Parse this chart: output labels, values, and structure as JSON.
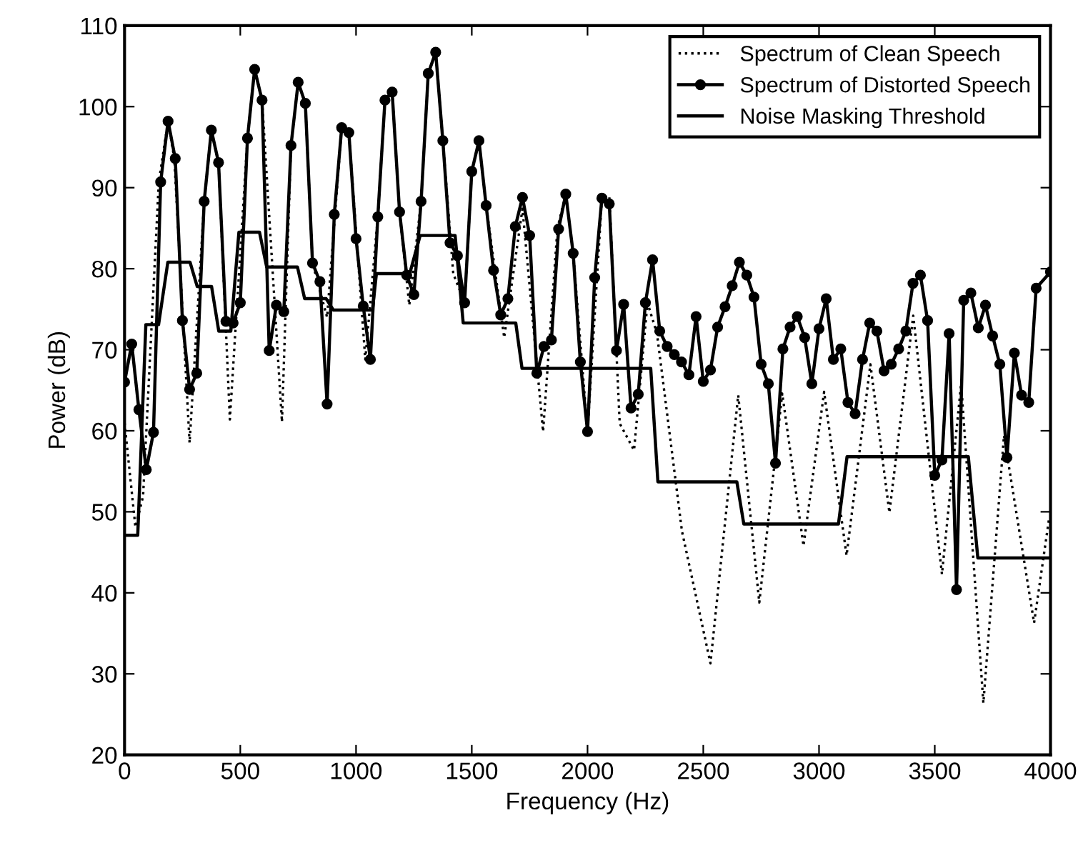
{
  "chart_data": {
    "type": "line",
    "xlabel": "Frequency (Hz)",
    "ylabel": "Power (dB)",
    "xlim": [
      0,
      4000
    ],
    "xticks": [
      0,
      500,
      1000,
      1500,
      2000,
      2500,
      3000,
      3500,
      4000
    ],
    "ylim": [
      20,
      110
    ],
    "yticks": [
      20,
      30,
      40,
      50,
      60,
      70,
      80,
      90,
      100,
      110
    ],
    "grid": false,
    "legend": "top right",
    "series": [
      {
        "name": "Spectrum of Clean Speech",
        "color": "#000000",
        "line_style": "dotted",
        "marker": "none",
        "x": [
          0,
          47,
          80,
          148,
          188,
          215,
          281,
          344,
          375,
          406,
          455,
          531,
          562,
          594,
          680,
          719,
          750,
          781,
          812,
          875,
          938,
          969,
          1040,
          1094,
          1125,
          1156,
          1188,
          1230,
          1281,
          1312,
          1344,
          1375,
          1420,
          1469,
          1500,
          1531,
          1562,
          1640,
          1719,
          1808,
          1870,
          1906,
          1938,
          2000,
          2062,
          2094,
          2139,
          2201,
          2259,
          2300,
          2408,
          2531,
          2651,
          2742,
          2841,
          2933,
          3022,
          3119,
          3222,
          3304,
          3407,
          3531,
          3614,
          3710,
          3799,
          3929,
          3995
        ],
        "values": [
          61,
          48.1,
          51.9,
          90.7,
          98.2,
          93.6,
          58.5,
          88.3,
          97.1,
          93.1,
          61.4,
          96.1,
          104.6,
          100.8,
          61.1,
          95.2,
          103.0,
          100.4,
          80.7,
          74,
          97.4,
          96.8,
          68.8,
          86.4,
          100.8,
          101.8,
          87.0,
          75.5,
          88.3,
          104.1,
          106.7,
          95.8,
          79.4,
          75.8,
          92,
          95.8,
          87.8,
          71.5,
          87.4,
          59.9,
          85,
          89.2,
          81.9,
          59.9,
          88.7,
          89,
          60.9,
          57.6,
          75.8,
          72,
          47.6,
          31.3,
          64.4,
          38.8,
          64.6,
          45.8,
          64.8,
          44.6,
          68.2,
          49.9,
          74.2,
          42.3,
          65.8,
          26.4,
          59.4,
          36.3,
          49.4
        ]
      },
      {
        "name": "Spectrum of Distorted Speech",
        "color": "#000000",
        "line_style": "solid",
        "marker": "circle",
        "x": [
          0,
          31,
          62,
          94,
          125,
          156,
          188,
          219,
          250,
          281,
          312,
          344,
          375,
          406,
          438,
          469,
          500,
          531,
          562,
          594,
          625,
          656,
          688,
          719,
          750,
          781,
          812,
          844,
          875,
          906,
          938,
          969,
          1000,
          1031,
          1062,
          1094,
          1125,
          1156,
          1188,
          1219,
          1250,
          1281,
          1312,
          1344,
          1375,
          1406,
          1438,
          1469,
          1500,
          1531,
          1562,
          1594,
          1625,
          1656,
          1688,
          1719,
          1750,
          1781,
          1812,
          1844,
          1875,
          1906,
          1938,
          1969,
          2000,
          2031,
          2062,
          2094,
          2125,
          2156,
          2188,
          2219,
          2250,
          2281,
          2312,
          2344,
          2375,
          2406,
          2438,
          2469,
          2500,
          2531,
          2562,
          2594,
          2625,
          2656,
          2688,
          2719,
          2750,
          2781,
          2812,
          2844,
          2875,
          2906,
          2938,
          2969,
          3000,
          3031,
          3062,
          3094,
          3125,
          3156,
          3188,
          3219,
          3250,
          3281,
          3312,
          3344,
          3375,
          3406,
          3438,
          3469,
          3500,
          3531,
          3562,
          3594,
          3625,
          3656,
          3688,
          3719,
          3750,
          3781,
          3812,
          3844,
          3875,
          3906,
          3938,
          4000
        ],
        "values": [
          66.0,
          70.7,
          62.6,
          55.2,
          59.8,
          90.7,
          98.2,
          93.6,
          73.6,
          65.1,
          67.1,
          88.3,
          97.1,
          93.1,
          73.5,
          73.3,
          75.8,
          96.1,
          104.6,
          100.8,
          69.9,
          75.5,
          74.7,
          95.2,
          103.0,
          100.4,
          80.7,
          78.4,
          63.3,
          86.7,
          97.4,
          96.8,
          83.7,
          75.4,
          68.8,
          86.4,
          100.8,
          101.8,
          87.0,
          79.2,
          76.8,
          88.3,
          104.1,
          106.7,
          95.8,
          83.2,
          81.6,
          75.8,
          92.0,
          95.8,
          87.8,
          79.8,
          74.3,
          76.3,
          85.2,
          88.8,
          84.1,
          67.1,
          70.4,
          71.2,
          84.9,
          89.2,
          81.9,
          68.5,
          59.9,
          78.9,
          88.7,
          88.0,
          69.9,
          75.6,
          62.8,
          64.5,
          75.8,
          81.1,
          72.3,
          70.4,
          69.4,
          68.5,
          66.9,
          74.1,
          66.1,
          67.5,
          72.8,
          75.3,
          77.9,
          80.8,
          79.2,
          76.5,
          68.2,
          65.8,
          56.0,
          70.1,
          72.8,
          74.1,
          71.5,
          65.8,
          72.6,
          76.3,
          68.8,
          70.1,
          63.5,
          62.1,
          68.8,
          73.3,
          72.3,
          67.4,
          68.2,
          70.1,
          72.3,
          78.2,
          79.2,
          73.6,
          54.5,
          56.4,
          72.0,
          40.4,
          76.1,
          77.0,
          72.7,
          75.5,
          71.7,
          68.2,
          56.7,
          69.6,
          64.4,
          63.5,
          77.6,
          79.6
        ]
      },
      {
        "name": "Noise Masking Threshold",
        "color": "#000000",
        "line_style": "solid",
        "marker": "none",
        "x": [
          0,
          57,
          92,
          147,
          187,
          283,
          314,
          376,
          407,
          459,
          494,
          583,
          614,
          747,
          778,
          871,
          902,
          1071,
          1088,
          1232,
          1277,
          1428,
          1463,
          1690,
          1717,
          2273,
          2304,
          2645,
          2675,
          3084,
          3121,
          3645,
          3686,
          4000
        ],
        "values": [
          47.1,
          47.1,
          73.1,
          73.1,
          80.8,
          80.8,
          77.8,
          77.8,
          72.3,
          72.3,
          84.5,
          84.5,
          80.2,
          80.2,
          76.3,
          76.3,
          74.9,
          74.9,
          79.4,
          79.4,
          84.1,
          84.1,
          73.3,
          73.3,
          67.7,
          67.7,
          53.7,
          53.7,
          48.5,
          48.5,
          56.8,
          56.8,
          44.3,
          44.3
        ]
      }
    ]
  }
}
